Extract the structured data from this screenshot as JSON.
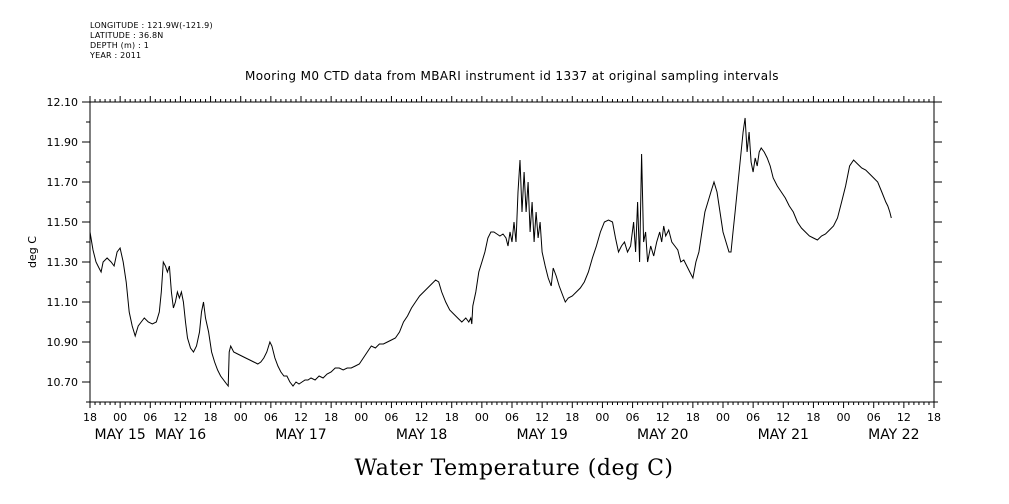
{
  "meta": {
    "longitude": "LONGITUDE : 121.9W(-121.9)",
    "latitude": "LATITUDE : 36.8N",
    "depth": "DEPTH (m) : 1",
    "year": "YEAR : 2011"
  },
  "chart_data": {
    "type": "line",
    "title": "Mooring M0 CTD data from MBARI instrument id 1337 at original sampling intervals",
    "xlabel": "Water Temperature (deg C)",
    "ylabel": "deg C",
    "ylim": [
      10.6,
      12.1
    ],
    "xlim_hours": [
      0,
      168
    ],
    "y_ticks": [
      "10.70",
      "10.90",
      "11.10",
      "11.30",
      "11.50",
      "11.70",
      "11.90",
      "12.10"
    ],
    "x_hour_ticks": [
      "18",
      "00",
      "06",
      "12",
      "18",
      "00",
      "06",
      "12",
      "18",
      "00",
      "06",
      "12",
      "18",
      "00",
      "06",
      "12",
      "18",
      "00",
      "06",
      "12",
      "18",
      "00",
      "06",
      "12",
      "18",
      "00",
      "06",
      "12",
      "18"
    ],
    "x_date_labels": [
      "MAY 15",
      "MAY 16",
      "MAY 17",
      "MAY 18",
      "MAY 19",
      "MAY 20",
      "MAY 21",
      "MAY 22"
    ],
    "x_date_label_hours": [
      6,
      18,
      42,
      66,
      90,
      114,
      138,
      160
    ],
    "series": [
      {
        "name": "",
        "points": [
          [
            0,
            11.45
          ],
          [
            0.6,
            11.36
          ],
          [
            1.2,
            11.3
          ],
          [
            1.8,
            11.27
          ],
          [
            2.2,
            11.25
          ],
          [
            2.6,
            11.3
          ],
          [
            3.4,
            11.32
          ],
          [
            4.2,
            11.3
          ],
          [
            4.8,
            11.28
          ],
          [
            5.4,
            11.35
          ],
          [
            6,
            11.37
          ],
          [
            6.6,
            11.3
          ],
          [
            7.2,
            11.2
          ],
          [
            7.8,
            11.05
          ],
          [
            8.4,
            10.98
          ],
          [
            9,
            10.93
          ],
          [
            9.6,
            10.98
          ],
          [
            10.2,
            11.0
          ],
          [
            10.8,
            11.02
          ],
          [
            11.6,
            11.0
          ],
          [
            12.4,
            10.99
          ],
          [
            13.2,
            11.0
          ],
          [
            13.8,
            11.05
          ],
          [
            14.2,
            11.15
          ],
          [
            14.6,
            11.3
          ],
          [
            15,
            11.28
          ],
          [
            15.4,
            11.25
          ],
          [
            15.8,
            11.28
          ],
          [
            16.2,
            11.15
          ],
          [
            16.6,
            11.07
          ],
          [
            17,
            11.1
          ],
          [
            17.4,
            11.15
          ],
          [
            17.8,
            11.12
          ],
          [
            18.2,
            11.15
          ],
          [
            18.6,
            11.1
          ],
          [
            19,
            11.0
          ],
          [
            19.4,
            10.92
          ],
          [
            20,
            10.87
          ],
          [
            20.6,
            10.85
          ],
          [
            21.2,
            10.88
          ],
          [
            21.8,
            10.95
          ],
          [
            22.2,
            11.05
          ],
          [
            22.6,
            11.1
          ],
          [
            23,
            11.02
          ],
          [
            23.6,
            10.95
          ],
          [
            24.2,
            10.85
          ],
          [
            24.8,
            10.8
          ],
          [
            25.4,
            10.76
          ],
          [
            26,
            10.73
          ],
          [
            26.6,
            10.71
          ],
          [
            27.2,
            10.69
          ],
          [
            27.5,
            10.68
          ],
          [
            27.7,
            10.85
          ],
          [
            28,
            10.88
          ],
          [
            28.6,
            10.85
          ],
          [
            29.4,
            10.84
          ],
          [
            30.2,
            10.83
          ],
          [
            31,
            10.82
          ],
          [
            31.8,
            10.81
          ],
          [
            32.6,
            10.8
          ],
          [
            33.4,
            10.79
          ],
          [
            34,
            10.8
          ],
          [
            34.6,
            10.82
          ],
          [
            35.2,
            10.85
          ],
          [
            35.8,
            10.9
          ],
          [
            36.2,
            10.88
          ],
          [
            36.8,
            10.82
          ],
          [
            37.4,
            10.78
          ],
          [
            38,
            10.75
          ],
          [
            38.6,
            10.73
          ],
          [
            39.2,
            10.73
          ],
          [
            39.8,
            10.7
          ],
          [
            40.4,
            10.68
          ],
          [
            41,
            10.7
          ],
          [
            41.6,
            10.69
          ],
          [
            42.2,
            10.7
          ],
          [
            42.8,
            10.71
          ],
          [
            43.4,
            10.71
          ],
          [
            44,
            10.72
          ],
          [
            44.8,
            10.71
          ],
          [
            45.6,
            10.73
          ],
          [
            46.4,
            10.72
          ],
          [
            47.2,
            10.74
          ],
          [
            48,
            10.75
          ],
          [
            48.8,
            10.77
          ],
          [
            49.6,
            10.77
          ],
          [
            50.4,
            10.76
          ],
          [
            51.2,
            10.77
          ],
          [
            52,
            10.77
          ],
          [
            52.8,
            10.78
          ],
          [
            53.6,
            10.79
          ],
          [
            54.4,
            10.82
          ],
          [
            55.2,
            10.85
          ],
          [
            56,
            10.88
          ],
          [
            56.8,
            10.87
          ],
          [
            57.6,
            10.89
          ],
          [
            58.4,
            10.89
          ],
          [
            59.2,
            10.9
          ],
          [
            60,
            10.91
          ],
          [
            60.8,
            10.92
          ],
          [
            61.6,
            10.95
          ],
          [
            62.4,
            11.0
          ],
          [
            63.2,
            11.03
          ],
          [
            64,
            11.07
          ],
          [
            64.8,
            11.1
          ],
          [
            65.6,
            11.13
          ],
          [
            66.4,
            11.15
          ],
          [
            67.2,
            11.17
          ],
          [
            68,
            11.19
          ],
          [
            68.8,
            11.21
          ],
          [
            69.4,
            11.2
          ],
          [
            70,
            11.15
          ],
          [
            70.8,
            11.1
          ],
          [
            71.6,
            11.06
          ],
          [
            72.4,
            11.04
          ],
          [
            73.2,
            11.02
          ],
          [
            74,
            11.0
          ],
          [
            74.8,
            11.02
          ],
          [
            75.4,
            11.0
          ],
          [
            75.8,
            11.02
          ],
          [
            76,
            10.99
          ],
          [
            76.2,
            11.08
          ],
          [
            76.8,
            11.15
          ],
          [
            77.4,
            11.25
          ],
          [
            78,
            11.3
          ],
          [
            78.6,
            11.35
          ],
          [
            79.2,
            11.42
          ],
          [
            79.8,
            11.45
          ],
          [
            80.4,
            11.45
          ],
          [
            81,
            11.44
          ],
          [
            81.6,
            11.43
          ],
          [
            82.2,
            11.44
          ],
          [
            82.8,
            11.42
          ],
          [
            83.2,
            11.38
          ],
          [
            83.6,
            11.45
          ],
          [
            84,
            11.4
          ],
          [
            84.4,
            11.5
          ],
          [
            84.8,
            11.4
          ],
          [
            85.2,
            11.65
          ],
          [
            85.6,
            11.81
          ],
          [
            86,
            11.55
          ],
          [
            86.4,
            11.75
          ],
          [
            86.8,
            11.55
          ],
          [
            87.2,
            11.7
          ],
          [
            87.6,
            11.45
          ],
          [
            88,
            11.6
          ],
          [
            88.4,
            11.4
          ],
          [
            88.8,
            11.55
          ],
          [
            89.2,
            11.42
          ],
          [
            89.6,
            11.5
          ],
          [
            90,
            11.35
          ],
          [
            90.6,
            11.28
          ],
          [
            91.2,
            11.22
          ],
          [
            91.8,
            11.18
          ],
          [
            92.2,
            11.27
          ],
          [
            92.8,
            11.23
          ],
          [
            93.4,
            11.18
          ],
          [
            94,
            11.14
          ],
          [
            94.6,
            11.1
          ],
          [
            95.2,
            11.12
          ],
          [
            96,
            11.13
          ],
          [
            96.8,
            11.15
          ],
          [
            97.6,
            11.17
          ],
          [
            98.4,
            11.2
          ],
          [
            99.2,
            11.25
          ],
          [
            100,
            11.32
          ],
          [
            100.8,
            11.38
          ],
          [
            101.6,
            11.45
          ],
          [
            102.4,
            11.5
          ],
          [
            103.2,
            11.51
          ],
          [
            104,
            11.5
          ],
          [
            104.6,
            11.42
          ],
          [
            105.2,
            11.35
          ],
          [
            105.8,
            11.38
          ],
          [
            106.4,
            11.4
          ],
          [
            107,
            11.35
          ],
          [
            107.6,
            11.38
          ],
          [
            108.2,
            11.5
          ],
          [
            108.6,
            11.35
          ],
          [
            109,
            11.6
          ],
          [
            109.4,
            11.3
          ],
          [
            109.8,
            11.84
          ],
          [
            110.2,
            11.4
          ],
          [
            110.6,
            11.45
          ],
          [
            111,
            11.3
          ],
          [
            111.6,
            11.38
          ],
          [
            112.2,
            11.33
          ],
          [
            112.8,
            11.4
          ],
          [
            113.4,
            11.45
          ],
          [
            113.8,
            11.4
          ],
          [
            114.2,
            11.48
          ],
          [
            114.6,
            11.43
          ],
          [
            115.2,
            11.46
          ],
          [
            115.8,
            11.4
          ],
          [
            116.4,
            11.38
          ],
          [
            117,
            11.36
          ],
          [
            117.6,
            11.3
          ],
          [
            118.2,
            11.31
          ],
          [
            118.8,
            11.28
          ],
          [
            119.4,
            11.25
          ],
          [
            120,
            11.22
          ],
          [
            120.6,
            11.3
          ],
          [
            121.2,
            11.35
          ],
          [
            121.8,
            11.45
          ],
          [
            122.4,
            11.55
          ],
          [
            123,
            11.6
          ],
          [
            123.6,
            11.65
          ],
          [
            124.2,
            11.7
          ],
          [
            124.8,
            11.65
          ],
          [
            125.4,
            11.55
          ],
          [
            126,
            11.45
          ],
          [
            126.6,
            11.4
          ],
          [
            127.2,
            11.35
          ],
          [
            127.6,
            11.35
          ],
          [
            128,
            11.45
          ],
          [
            128.4,
            11.55
          ],
          [
            128.8,
            11.65
          ],
          [
            129.2,
            11.75
          ],
          [
            129.6,
            11.85
          ],
          [
            130,
            11.95
          ],
          [
            130.4,
            12.02
          ],
          [
            130.8,
            11.85
          ],
          [
            131.2,
            11.95
          ],
          [
            131.6,
            11.8
          ],
          [
            132,
            11.75
          ],
          [
            132.4,
            11.82
          ],
          [
            132.8,
            11.78
          ],
          [
            133.2,
            11.85
          ],
          [
            133.6,
            11.87
          ],
          [
            134.2,
            11.85
          ],
          [
            134.8,
            11.82
          ],
          [
            135.4,
            11.78
          ],
          [
            136,
            11.72
          ],
          [
            136.8,
            11.68
          ],
          [
            137.6,
            11.65
          ],
          [
            138.4,
            11.62
          ],
          [
            139.2,
            11.58
          ],
          [
            140,
            11.55
          ],
          [
            140.8,
            11.5
          ],
          [
            141.6,
            11.47
          ],
          [
            142.4,
            11.45
          ],
          [
            143.2,
            11.43
          ],
          [
            144,
            11.42
          ],
          [
            144.8,
            11.41
          ],
          [
            145.6,
            11.43
          ],
          [
            146.4,
            11.44
          ],
          [
            147.2,
            11.46
          ],
          [
            148,
            11.48
          ],
          [
            148.8,
            11.52
          ],
          [
            149.6,
            11.6
          ],
          [
            150.4,
            11.68
          ],
          [
            151.2,
            11.78
          ],
          [
            152,
            11.81
          ],
          [
            152.8,
            11.79
          ],
          [
            153.6,
            11.77
          ],
          [
            154.4,
            11.76
          ],
          [
            155.2,
            11.74
          ],
          [
            156,
            11.72
          ],
          [
            156.8,
            11.7
          ],
          [
            157.6,
            11.65
          ],
          [
            158.4,
            11.6
          ],
          [
            158.8,
            11.58
          ],
          [
            159.2,
            11.55
          ],
          [
            159.5,
            11.52
          ]
        ]
      }
    ]
  }
}
